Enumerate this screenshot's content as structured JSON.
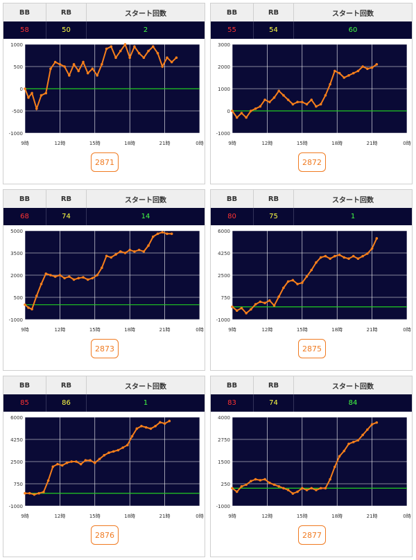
{
  "header": {
    "bb": "BB",
    "rb": "RB",
    "start": "スタート回数"
  },
  "colors": {
    "line": "#f77f1b",
    "zero": "#22cc22",
    "grid": "#ffffff",
    "plot_bg": "#0a0a36"
  },
  "machines": [
    {
      "bb": "58",
      "rb": "50",
      "start": "2",
      "id": "2871",
      "chart_data": {
        "type": "line",
        "x_ticks": [
          "9時",
          "12時",
          "15時",
          "18時",
          "21時",
          "0時"
        ],
        "y_ticks": [
          "1000",
          "500",
          "0",
          "-500",
          "-1000"
        ],
        "ylim": [
          -1000,
          1000
        ],
        "xlim": [
          9,
          24
        ],
        "zero_line": 0,
        "x": [
          9,
          9.3,
          9.6,
          10,
          10.4,
          10.8,
          11.2,
          11.6,
          12,
          12.4,
          12.8,
          13.2,
          13.6,
          14,
          14.4,
          14.8,
          15.2,
          15.6,
          16,
          16.4,
          16.8,
          17.2,
          17.6,
          18,
          18.4,
          18.8,
          19.2,
          19.6,
          20,
          20.4,
          20.8,
          21.2,
          21.6,
          22
        ],
        "y": [
          0,
          -200,
          -100,
          -450,
          -150,
          -100,
          450,
          600,
          550,
          500,
          300,
          550,
          400,
          600,
          350,
          450,
          300,
          550,
          900,
          950,
          700,
          850,
          1000,
          700,
          950,
          800,
          700,
          850,
          950,
          800,
          500,
          700,
          600,
          700
        ]
      }
    },
    {
      "bb": "55",
      "rb": "54",
      "start": "60",
      "id": "2872",
      "chart_data": {
        "type": "line",
        "x_ticks": [
          "9時",
          "12時",
          "15時",
          "18時",
          "21時",
          "0時"
        ],
        "y_ticks": [
          "3000",
          "2000",
          "1000",
          "0",
          "-1000"
        ],
        "ylim": [
          -1000,
          3000
        ],
        "xlim": [
          9,
          24
        ],
        "zero_line": 0,
        "x": [
          9,
          9.4,
          9.8,
          10.2,
          10.6,
          11,
          11.4,
          11.8,
          12.2,
          12.6,
          13,
          13.4,
          13.8,
          14.2,
          14.6,
          15,
          15.4,
          15.8,
          16.2,
          16.6,
          17,
          17.4,
          17.8,
          18.2,
          18.6,
          19,
          19.4,
          19.8,
          20.2,
          20.6,
          21,
          21.4
        ],
        "y": [
          0,
          -300,
          -100,
          -300,
          0,
          100,
          200,
          500,
          400,
          600,
          900,
          700,
          500,
          300,
          400,
          400,
          300,
          500,
          200,
          300,
          700,
          1200,
          1800,
          1700,
          1500,
          1600,
          1700,
          1800,
          2000,
          1900,
          1950,
          2100
        ]
      }
    },
    {
      "bb": "68",
      "rb": "74",
      "start": "14",
      "id": "2873",
      "chart_data": {
        "type": "line",
        "x_ticks": [
          "9時",
          "12時",
          "15時",
          "18時",
          "21時",
          "0時"
        ],
        "y_ticks": [
          "5000",
          "3500",
          "2000",
          "500",
          "-1000"
        ],
        "ylim": [
          -1000,
          5000
        ],
        "xlim": [
          9,
          24
        ],
        "zero_line": 0,
        "x": [
          9,
          9.3,
          9.6,
          10,
          10.4,
          10.8,
          11.2,
          11.6,
          12,
          12.4,
          12.8,
          13.2,
          13.6,
          14,
          14.4,
          14.8,
          15.2,
          15.6,
          16,
          16.4,
          16.8,
          17.2,
          17.6,
          18,
          18.4,
          18.8,
          19.2,
          19.6,
          20,
          20.4,
          20.8,
          21.2,
          21.6
        ],
        "y": [
          0,
          -200,
          -300,
          600,
          1400,
          2100,
          2000,
          1900,
          2000,
          1800,
          1900,
          1700,
          1800,
          1850,
          1700,
          1800,
          2000,
          2500,
          3300,
          3200,
          3400,
          3600,
          3500,
          3700,
          3600,
          3700,
          3600,
          4000,
          4600,
          4800,
          4900,
          4800,
          4800
        ]
      }
    },
    {
      "bb": "80",
      "rb": "75",
      "start": "1",
      "id": "2875",
      "chart_data": {
        "type": "line",
        "x_ticks": [
          "9時",
          "12時",
          "15時",
          "18時",
          "21時",
          "0時"
        ],
        "y_ticks": [
          "6000",
          "4250",
          "2500",
          "750",
          "-1000"
        ],
        "ylim": [
          -1000,
          6000
        ],
        "xlim": [
          9,
          24
        ],
        "zero_line": 0,
        "x": [
          9,
          9.4,
          9.8,
          10.2,
          10.6,
          11,
          11.4,
          11.8,
          12.2,
          12.6,
          13,
          13.4,
          13.8,
          14.2,
          14.6,
          15,
          15.4,
          15.8,
          16.2,
          16.6,
          17,
          17.4,
          17.8,
          18.2,
          18.6,
          19,
          19.4,
          19.8,
          20.2,
          20.6,
          21,
          21.4
        ],
        "y": [
          0,
          -300,
          -100,
          -500,
          -200,
          200,
          400,
          300,
          500,
          100,
          800,
          1500,
          2000,
          2100,
          1800,
          1900,
          2400,
          2900,
          3500,
          3900,
          4000,
          3800,
          4000,
          4100,
          3900,
          3800,
          4000,
          3800,
          4000,
          4200,
          4600,
          5400
        ]
      }
    },
    {
      "bb": "85",
      "rb": "86",
      "start": "1",
      "id": "2876",
      "chart_data": {
        "type": "line",
        "x_ticks": [
          "9時",
          "12時",
          "15時",
          "18時",
          "21時",
          "0時"
        ],
        "y_ticks": [
          "6000",
          "4250",
          "2500",
          "750",
          "-1000"
        ],
        "ylim": [
          -1000,
          6000
        ],
        "xlim": [
          9,
          24
        ],
        "zero_line": 0,
        "x": [
          9,
          9.4,
          9.8,
          10.2,
          10.6,
          11,
          11.4,
          11.8,
          12.2,
          12.6,
          13,
          13.4,
          13.8,
          14.2,
          14.6,
          15,
          15.4,
          15.8,
          16.2,
          16.6,
          17,
          17.4,
          17.8,
          18.2,
          18.6,
          19,
          19.4,
          19.8,
          20.2,
          20.6,
          21,
          21.4
        ],
        "y": [
          0,
          0,
          -100,
          0,
          100,
          1000,
          2100,
          2300,
          2200,
          2400,
          2500,
          2500,
          2300,
          2600,
          2600,
          2400,
          2700,
          3000,
          3200,
          3300,
          3400,
          3600,
          3800,
          4500,
          5100,
          5300,
          5200,
          5100,
          5300,
          5600,
          5500,
          5700
        ]
      }
    },
    {
      "bb": "83",
      "rb": "74",
      "start": "84",
      "id": "2877",
      "chart_data": {
        "type": "line",
        "x_ticks": [
          "9時",
          "12時",
          "15時",
          "18時",
          "21時",
          "0時"
        ],
        "y_ticks": [
          "4000",
          "2750",
          "1500",
          "250",
          "-1000"
        ],
        "ylim": [
          -1000,
          4000
        ],
        "xlim": [
          9,
          24
        ],
        "zero_line": 0,
        "x": [
          9,
          9.4,
          9.8,
          10.2,
          10.6,
          11,
          11.4,
          11.8,
          12.2,
          12.6,
          13,
          13.4,
          13.8,
          14.2,
          14.6,
          15,
          15.4,
          15.8,
          16.2,
          16.6,
          17,
          17.4,
          17.8,
          18.2,
          18.6,
          19,
          19.4,
          19.8,
          20.2,
          20.6,
          21,
          21.4
        ],
        "y": [
          0,
          -200,
          100,
          200,
          400,
          500,
          450,
          500,
          300,
          200,
          100,
          0,
          -100,
          -300,
          -200,
          0,
          -100,
          0,
          -100,
          0,
          0,
          500,
          1200,
          1800,
          2100,
          2500,
          2600,
          2700,
          3000,
          3300,
          3600,
          3700
        ]
      }
    }
  ]
}
